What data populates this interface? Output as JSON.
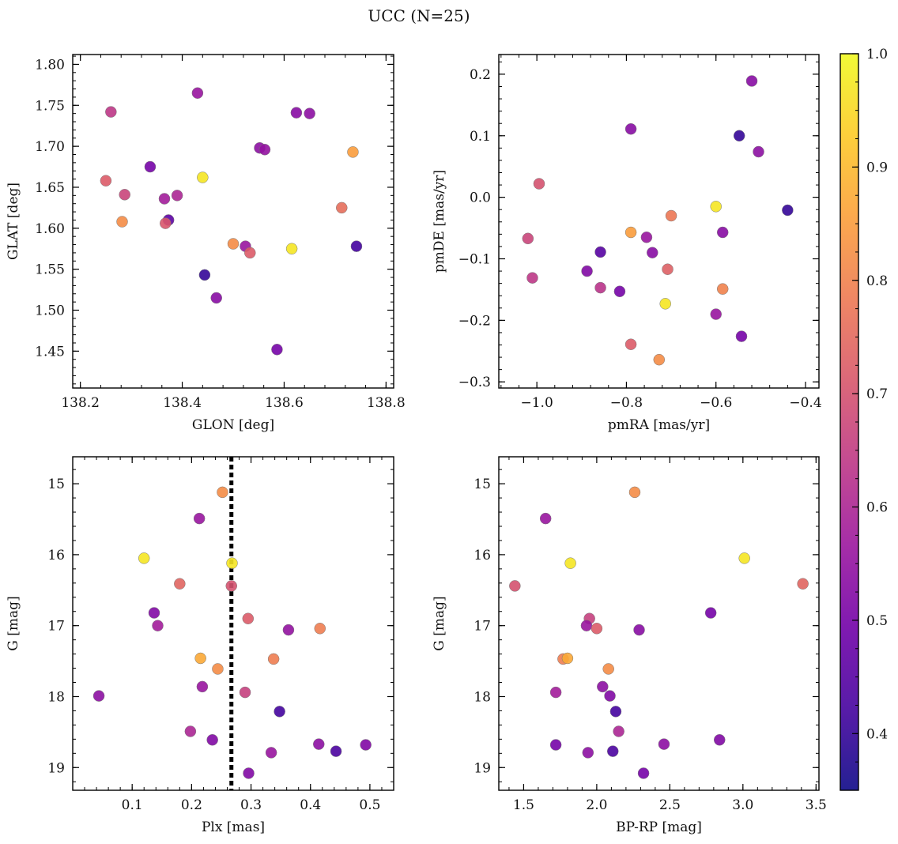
{
  "figure": {
    "suptitle": "UCC (N=25)"
  },
  "colorbar": {
    "min": 0.35,
    "max": 1.0,
    "ticks": [
      0.4,
      0.5,
      0.6,
      0.7,
      0.8,
      0.9,
      1.0
    ],
    "tick_labels": [
      "0.4",
      "0.5",
      "0.6",
      "0.7",
      "0.8",
      "0.9",
      "1.0"
    ],
    "colormap": "plasma",
    "cmap_stops": [
      "#0d0887",
      "#46039f",
      "#7201a8",
      "#9c179e",
      "#bd3786",
      "#d8576b",
      "#ed7953",
      "#fb9f3a",
      "#fdca26",
      "#f0f921"
    ]
  },
  "chart_data": [
    {
      "id": "glon-glat",
      "type": "scatter",
      "xlabel": "GLON [deg]",
      "ylabel": "GLAT [deg]",
      "xlim": [
        138.185,
        138.815
      ],
      "ylim": [
        1.405,
        1.812
      ],
      "x_invert": false,
      "y_invert": false,
      "xticks": [
        138.2,
        138.4,
        138.6,
        138.8
      ],
      "xtick_labels": [
        "138.2",
        "138.4",
        "138.6",
        "138.8"
      ],
      "yticks": [
        1.45,
        1.5,
        1.55,
        1.6,
        1.65,
        1.7,
        1.75,
        1.8
      ],
      "ytick_labels": [
        "1.45",
        "1.50",
        "1.55",
        "1.60",
        "1.65",
        "1.70",
        "1.75",
        "1.80"
      ],
      "points": [
        {
          "x": 138.26,
          "y": 1.742,
          "c": 0.64
        },
        {
          "x": 138.25,
          "y": 1.658,
          "c": 0.72
        },
        {
          "x": 138.287,
          "y": 1.641,
          "c": 0.67
        },
        {
          "x": 138.282,
          "y": 1.608,
          "c": 0.82
        },
        {
          "x": 138.337,
          "y": 1.675,
          "c": 0.5
        },
        {
          "x": 138.365,
          "y": 1.636,
          "c": 0.58
        },
        {
          "x": 138.373,
          "y": 1.61,
          "c": 0.46
        },
        {
          "x": 138.367,
          "y": 1.606,
          "c": 0.71
        },
        {
          "x": 138.39,
          "y": 1.64,
          "c": 0.6
        },
        {
          "x": 138.43,
          "y": 1.765,
          "c": 0.56
        },
        {
          "x": 138.44,
          "y": 1.662,
          "c": 0.97
        },
        {
          "x": 138.444,
          "y": 1.543,
          "c": 0.4
        },
        {
          "x": 138.467,
          "y": 1.515,
          "c": 0.53
        },
        {
          "x": 138.5,
          "y": 1.581,
          "c": 0.82
        },
        {
          "x": 138.524,
          "y": 1.578,
          "c": 0.56
        },
        {
          "x": 138.533,
          "y": 1.57,
          "c": 0.72
        },
        {
          "x": 138.552,
          "y": 1.698,
          "c": 0.54
        },
        {
          "x": 138.562,
          "y": 1.696,
          "c": 0.55
        },
        {
          "x": 138.586,
          "y": 1.452,
          "c": 0.5
        },
        {
          "x": 138.615,
          "y": 1.575,
          "c": 0.97
        },
        {
          "x": 138.624,
          "y": 1.741,
          "c": 0.53
        },
        {
          "x": 138.65,
          "y": 1.74,
          "c": 0.54
        },
        {
          "x": 138.713,
          "y": 1.625,
          "c": 0.76
        },
        {
          "x": 138.735,
          "y": 1.693,
          "c": 0.85
        },
        {
          "x": 138.742,
          "y": 1.578,
          "c": 0.42
        }
      ]
    },
    {
      "id": "pmra-pmde",
      "type": "scatter",
      "xlabel": "pmRA [mas/yr]",
      "ylabel": "pmDE [mas/yr]",
      "xlim": [
        -1.085,
        -0.37
      ],
      "ylim": [
        -0.31,
        0.232
      ],
      "x_invert": false,
      "y_invert": false,
      "xticks": [
        -1.0,
        -0.8,
        -0.6,
        -0.4
      ],
      "xtick_labels": [
        "−1.0",
        "−0.8",
        "−0.6",
        "−0.4"
      ],
      "yticks": [
        -0.3,
        -0.2,
        -0.1,
        0.0,
        0.1,
        0.2
      ],
      "ytick_labels": [
        "−0.3",
        "−0.2",
        "−0.1",
        "0.0",
        "0.1",
        "0.2"
      ],
      "points": [
        {
          "x": -0.52,
          "y": 0.189,
          "c": 0.53
        },
        {
          "x": -0.548,
          "y": 0.1,
          "c": 0.4
        },
        {
          "x": -0.505,
          "y": 0.074,
          "c": 0.54
        },
        {
          "x": -0.44,
          "y": -0.021,
          "c": 0.4
        },
        {
          "x": -0.79,
          "y": 0.111,
          "c": 0.53
        },
        {
          "x": -0.995,
          "y": 0.022,
          "c": 0.7
        },
        {
          "x": -0.6,
          "y": -0.015,
          "c": 0.97
        },
        {
          "x": -0.7,
          "y": -0.03,
          "c": 0.78
        },
        {
          "x": -0.79,
          "y": -0.057,
          "c": 0.85
        },
        {
          "x": -0.585,
          "y": -0.057,
          "c": 0.53
        },
        {
          "x": -1.02,
          "y": -0.067,
          "c": 0.67
        },
        {
          "x": -0.755,
          "y": -0.065,
          "c": 0.56
        },
        {
          "x": -0.742,
          "y": -0.09,
          "c": 0.53
        },
        {
          "x": -0.858,
          "y": -0.089,
          "c": 0.45
        },
        {
          "x": -0.708,
          "y": -0.117,
          "c": 0.73
        },
        {
          "x": -0.888,
          "y": -0.12,
          "c": 0.52
        },
        {
          "x": -1.01,
          "y": -0.131,
          "c": 0.64
        },
        {
          "x": -0.858,
          "y": -0.147,
          "c": 0.63
        },
        {
          "x": -0.815,
          "y": -0.153,
          "c": 0.5
        },
        {
          "x": -0.585,
          "y": -0.149,
          "c": 0.8
        },
        {
          "x": -0.713,
          "y": -0.173,
          "c": 0.97
        },
        {
          "x": -0.6,
          "y": -0.19,
          "c": 0.56
        },
        {
          "x": -0.543,
          "y": -0.226,
          "c": 0.5
        },
        {
          "x": -0.79,
          "y": -0.239,
          "c": 0.72
        },
        {
          "x": -0.727,
          "y": -0.264,
          "c": 0.82
        }
      ]
    },
    {
      "id": "plx-g",
      "type": "scatter",
      "xlabel": "Plx [mas]",
      "ylabel": "G [mag]",
      "xlim": [
        0.0,
        0.54
      ],
      "ylim": [
        14.62,
        19.32
      ],
      "x_invert": false,
      "y_invert": true,
      "vline": 0.267,
      "xticks": [
        0.1,
        0.2,
        0.3,
        0.4,
        0.5
      ],
      "xtick_labels": [
        "0.1",
        "0.2",
        "0.3",
        "0.4",
        "0.5"
      ],
      "yticks": [
        15,
        16,
        17,
        18,
        19
      ],
      "ytick_labels": [
        "15",
        "16",
        "17",
        "18",
        "19"
      ],
      "points": [
        {
          "x": 0.252,
          "y": 15.12,
          "c": 0.82
        },
        {
          "x": 0.213,
          "y": 15.49,
          "c": 0.56
        },
        {
          "x": 0.12,
          "y": 16.05,
          "c": 0.97
        },
        {
          "x": 0.268,
          "y": 16.12,
          "c": 0.97
        },
        {
          "x": 0.18,
          "y": 16.41,
          "c": 0.74
        },
        {
          "x": 0.267,
          "y": 16.44,
          "c": 0.7
        },
        {
          "x": 0.137,
          "y": 16.82,
          "c": 0.52
        },
        {
          "x": 0.143,
          "y": 17.0,
          "c": 0.58
        },
        {
          "x": 0.295,
          "y": 16.9,
          "c": 0.72
        },
        {
          "x": 0.363,
          "y": 17.06,
          "c": 0.55
        },
        {
          "x": 0.416,
          "y": 17.04,
          "c": 0.79
        },
        {
          "x": 0.215,
          "y": 17.46,
          "c": 0.87
        },
        {
          "x": 0.338,
          "y": 17.47,
          "c": 0.79
        },
        {
          "x": 0.244,
          "y": 17.61,
          "c": 0.82
        },
        {
          "x": 0.218,
          "y": 17.86,
          "c": 0.56
        },
        {
          "x": 0.29,
          "y": 17.94,
          "c": 0.66
        },
        {
          "x": 0.044,
          "y": 17.99,
          "c": 0.54
        },
        {
          "x": 0.348,
          "y": 18.21,
          "c": 0.42
        },
        {
          "x": 0.198,
          "y": 18.49,
          "c": 0.6
        },
        {
          "x": 0.235,
          "y": 18.61,
          "c": 0.52
        },
        {
          "x": 0.414,
          "y": 18.67,
          "c": 0.54
        },
        {
          "x": 0.493,
          "y": 18.68,
          "c": 0.52
        },
        {
          "x": 0.443,
          "y": 18.77,
          "c": 0.43
        },
        {
          "x": 0.334,
          "y": 18.79,
          "c": 0.56
        },
        {
          "x": 0.296,
          "y": 19.08,
          "c": 0.52
        }
      ]
    },
    {
      "id": "bprp-g",
      "type": "scatter",
      "xlabel": "BP-RP [mag]",
      "ylabel": "G [mag]",
      "xlim": [
        1.33,
        3.52
      ],
      "ylim": [
        14.62,
        19.32
      ],
      "x_invert": false,
      "y_invert": true,
      "xticks": [
        1.5,
        2.0,
        2.5,
        3.0,
        3.5
      ],
      "xtick_labels": [
        "1.5",
        "2.0",
        "2.5",
        "3.0",
        "3.5"
      ],
      "yticks": [
        15,
        16,
        17,
        18,
        19
      ],
      "ytick_labels": [
        "15",
        "16",
        "17",
        "18",
        "19"
      ],
      "points": [
        {
          "x": 2.26,
          "y": 15.12,
          "c": 0.82
        },
        {
          "x": 1.65,
          "y": 15.49,
          "c": 0.56
        },
        {
          "x": 3.01,
          "y": 16.05,
          "c": 0.97
        },
        {
          "x": 1.82,
          "y": 16.12,
          "c": 0.97
        },
        {
          "x": 1.44,
          "y": 16.44,
          "c": 0.7
        },
        {
          "x": 3.41,
          "y": 16.41,
          "c": 0.74
        },
        {
          "x": 2.78,
          "y": 16.82,
          "c": 0.5
        },
        {
          "x": 1.95,
          "y": 16.9,
          "c": 0.66
        },
        {
          "x": 1.93,
          "y": 17.0,
          "c": 0.56
        },
        {
          "x": 2.0,
          "y": 17.04,
          "c": 0.72
        },
        {
          "x": 2.29,
          "y": 17.06,
          "c": 0.53
        },
        {
          "x": 1.77,
          "y": 17.47,
          "c": 0.79
        },
        {
          "x": 1.8,
          "y": 17.46,
          "c": 0.87
        },
        {
          "x": 2.08,
          "y": 17.61,
          "c": 0.82
        },
        {
          "x": 1.72,
          "y": 17.94,
          "c": 0.58
        },
        {
          "x": 2.04,
          "y": 17.86,
          "c": 0.54
        },
        {
          "x": 2.09,
          "y": 17.99,
          "c": 0.52
        },
        {
          "x": 2.13,
          "y": 18.21,
          "c": 0.42
        },
        {
          "x": 2.15,
          "y": 18.49,
          "c": 0.6
        },
        {
          "x": 2.84,
          "y": 18.61,
          "c": 0.52
        },
        {
          "x": 2.46,
          "y": 18.67,
          "c": 0.54
        },
        {
          "x": 1.72,
          "y": 18.68,
          "c": 0.5
        },
        {
          "x": 2.11,
          "y": 18.77,
          "c": 0.43
        },
        {
          "x": 1.94,
          "y": 18.79,
          "c": 0.54
        },
        {
          "x": 2.32,
          "y": 19.08,
          "c": 0.5
        }
      ]
    }
  ]
}
